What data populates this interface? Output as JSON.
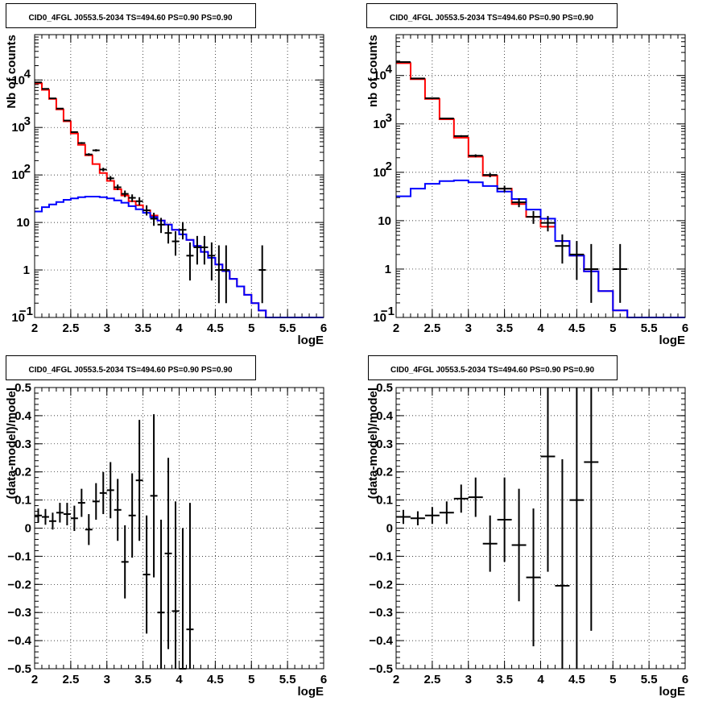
{
  "chart_data": [
    {
      "type": "line",
      "title": "CID0_4FGL J0553.5-2034 TS=494.60 PS=0.90 PS=0.90",
      "xlabel": "logE",
      "ylabel": "Nb of counts",
      "xlim": [
        2,
        6
      ],
      "ylim": [
        0.1,
        90000
      ],
      "yscale": "log",
      "grid": true,
      "x_ticks": [
        "2",
        "2.5",
        "3",
        "3.5",
        "4",
        "4.5",
        "5",
        "5.5",
        "6"
      ],
      "y_ticks": [
        {
          "value": 0.1,
          "label": "10",
          "sup": "−1"
        },
        {
          "value": 1,
          "label": "1",
          "sup": ""
        },
        {
          "value": 10,
          "label": "10",
          "sup": ""
        },
        {
          "value": 100,
          "label": "10",
          "sup": "2"
        },
        {
          "value": 1000,
          "label": "10",
          "sup": "3"
        },
        {
          "value": 10000,
          "label": "10",
          "sup": "4"
        }
      ],
      "bin_width": 0.1,
      "series": [
        {
          "color": "#ff0000",
          "style": "step",
          "x": [
            2.0,
            2.1,
            2.2,
            2.3,
            2.4,
            2.5,
            2.6,
            2.7,
            2.8,
            2.9,
            3.0,
            3.1,
            3.2,
            3.3,
            3.4,
            3.5,
            3.6,
            3.7,
            3.8,
            3.9,
            4.0,
            4.1,
            4.2,
            4.3,
            4.4,
            4.5,
            4.6,
            4.7,
            4.8,
            4.9,
            5.0,
            5.1,
            5.2,
            5.3,
            5.4,
            5.5,
            5.6,
            5.7,
            5.8,
            5.9
          ],
          "values": [
            8500,
            6200,
            4000,
            2400,
            1350,
            750,
            430,
            260,
            170,
            110,
            75,
            50,
            37,
            28,
            23,
            18,
            14,
            11,
            9,
            7,
            5.6,
            4.3,
            3.2,
            2.4,
            1.8,
            1.3,
            0.95,
            0.65,
            0.45,
            0.3,
            0.2,
            0.14,
            0.1,
            0.1,
            0.1,
            0.1,
            0.1,
            0.1,
            0.1,
            0.1
          ]
        },
        {
          "color": "#0000ff",
          "style": "step",
          "x": [
            2.0,
            2.1,
            2.2,
            2.3,
            2.4,
            2.5,
            2.6,
            2.7,
            2.8,
            2.9,
            3.0,
            3.1,
            3.2,
            3.3,
            3.4,
            3.5,
            3.6,
            3.7,
            3.8,
            3.9,
            4.0,
            4.1,
            4.2,
            4.3,
            4.4,
            4.5,
            4.6,
            4.7,
            4.8,
            4.9,
            5.0,
            5.1,
            5.2,
            5.3,
            5.4,
            5.5,
            5.6,
            5.7,
            5.8,
            5.9
          ],
          "values": [
            17,
            21,
            24,
            27,
            30,
            32,
            34,
            35,
            35,
            34,
            32,
            29,
            26,
            22,
            19,
            16,
            13,
            11,
            9,
            7,
            5.6,
            4.3,
            3.2,
            2.4,
            1.8,
            1.3,
            0.95,
            0.65,
            0.45,
            0.3,
            0.2,
            0.14,
            0.1,
            0.1,
            0.1,
            0.1,
            0.1,
            0.1,
            0.1,
            0.1
          ]
        },
        {
          "color": "#000000",
          "style": "errorbar",
          "x": [
            2.05,
            2.15,
            2.25,
            2.35,
            2.45,
            2.55,
            2.65,
            2.75,
            2.85,
            2.95,
            3.05,
            3.15,
            3.25,
            3.35,
            3.45,
            3.55,
            3.65,
            3.75,
            3.85,
            3.95,
            4.05,
            4.15,
            4.25,
            4.35,
            4.45,
            4.55,
            4.65,
            5.15
          ],
          "values": [
            8900,
            6500,
            4100,
            2500,
            1400,
            800,
            470,
            270,
            330,
            130,
            85,
            55,
            40,
            33,
            28,
            18,
            12,
            9,
            6,
            4,
            7,
            2,
            3,
            3,
            2,
            1,
            1,
            1
          ],
          "err_low": [
            90,
            80,
            60,
            50,
            37,
            28,
            21,
            16,
            18,
            11,
            9,
            7,
            6,
            6,
            5,
            4,
            3.5,
            3,
            2.4,
            2,
            2.6,
            1.4,
            1.7,
            1.7,
            1.4,
            0.8,
            0.8,
            0.8
          ],
          "err_high": [
            95,
            80,
            65,
            50,
            38,
            29,
            22,
            17,
            19,
            12,
            10,
            8,
            7,
            6,
            6,
            5,
            4,
            3.5,
            3,
            2.5,
            3.2,
            1.8,
            2.2,
            2.2,
            1.8,
            2.3,
            2.3,
            2.3
          ]
        }
      ]
    },
    {
      "type": "line",
      "title": "CID0_4FGL J0553.5-2034 TS=494.60 PS=0.90 PS=0.90",
      "xlabel": "logE",
      "ylabel": "nb of counts",
      "xlim": [
        2,
        6
      ],
      "ylim": [
        0.1,
        70000
      ],
      "yscale": "log",
      "grid": true,
      "x_ticks": [
        "2",
        "2.5",
        "3",
        "3.5",
        "4",
        "4.5",
        "5",
        "5.5",
        "6"
      ],
      "y_ticks": [
        {
          "value": 0.1,
          "label": "10",
          "sup": "−1"
        },
        {
          "value": 1,
          "label": "1",
          "sup": ""
        },
        {
          "value": 10,
          "label": "10",
          "sup": ""
        },
        {
          "value": 100,
          "label": "10",
          "sup": "2"
        },
        {
          "value": 1000,
          "label": "10",
          "sup": "3"
        },
        {
          "value": 10000,
          "label": "10",
          "sup": "4"
        }
      ],
      "bin_width": 0.2,
      "series": [
        {
          "color": "#ff0000",
          "style": "step",
          "x": [
            2.0,
            2.2,
            2.4,
            2.6,
            2.8,
            3.0,
            3.2,
            3.4,
            3.6,
            3.8,
            4.0,
            4.2,
            4.4,
            4.6,
            4.8,
            5.0,
            5.2,
            5.4,
            5.6,
            5.8
          ],
          "values": [
            18000,
            8400,
            3300,
            1250,
            520,
            210,
            85,
            46,
            22,
            12,
            7.5,
            3.8,
            1.9,
            0.9,
            0.35,
            0.14,
            0.1,
            0.1,
            0.1,
            0.1
          ]
        },
        {
          "color": "#0000ff",
          "style": "step",
          "x": [
            2.0,
            2.2,
            2.4,
            2.6,
            2.8,
            3.0,
            3.2,
            3.4,
            3.6,
            3.8,
            4.0,
            4.2,
            4.4,
            4.6,
            4.8,
            5.0,
            5.2,
            5.4,
            5.6,
            5.8
          ],
          "values": [
            32,
            46,
            58,
            66,
            68,
            62,
            52,
            40,
            28,
            17,
            11,
            3.8,
            1.9,
            0.9,
            0.35,
            0.14,
            0.1,
            0.1,
            0.1,
            0.1
          ]
        },
        {
          "color": "#000000",
          "style": "errorbar",
          "x": [
            2.1,
            2.3,
            2.5,
            2.7,
            2.9,
            3.1,
            3.3,
            3.5,
            3.7,
            3.9,
            4.1,
            4.3,
            4.5,
            4.7,
            5.1
          ],
          "values": [
            19000,
            8700,
            3400,
            1300,
            560,
            220,
            88,
            46,
            24,
            12,
            9,
            3,
            2,
            1,
            1
          ],
          "err_low": [
            140,
            95,
            60,
            36,
            24,
            15,
            9,
            7,
            5,
            3.4,
            3,
            1.7,
            1.4,
            0.8,
            0.8
          ],
          "err_high": [
            140,
            95,
            60,
            36,
            24,
            15,
            9,
            7,
            5,
            3.8,
            3.5,
            2.2,
            1.8,
            2.3,
            2.3
          ]
        }
      ]
    },
    {
      "type": "scatter",
      "title": "CID0_4FGL J0553.5-2034 TS=494.60 PS=0.90 PS=0.90",
      "xlabel": "logE",
      "ylabel": "(data-model)/model",
      "xlim": [
        2,
        6
      ],
      "ylim": [
        -0.5,
        0.5
      ],
      "grid": true,
      "x_ticks": [
        "2",
        "2.5",
        "3",
        "3.5",
        "4",
        "4.5",
        "5",
        "5.5",
        "6"
      ],
      "y_ticks": [
        "−0.5",
        "−0.4",
        "−0.3",
        "−0.2",
        "−0.1",
        "0",
        "0.1",
        "0.2",
        "0.3",
        "0.4",
        "0.5"
      ],
      "bin_width": 0.1,
      "series": [
        {
          "color": "#000000",
          "style": "errorbar",
          "x": [
            2.05,
            2.15,
            2.25,
            2.35,
            2.45,
            2.55,
            2.65,
            2.75,
            2.85,
            2.95,
            3.05,
            3.15,
            3.25,
            3.35,
            3.45,
            3.55,
            3.65,
            3.75,
            3.85,
            3.95,
            4.05,
            4.15
          ],
          "values": [
            0.045,
            0.04,
            0.025,
            0.055,
            0.05,
            0.035,
            0.09,
            -0.005,
            0.095,
            0.125,
            0.135,
            0.065,
            -0.12,
            0.045,
            0.17,
            -0.165,
            0.115,
            -0.3,
            -0.09,
            -0.295,
            -0.5,
            -0.36
          ],
          "err": [
            0.025,
            0.028,
            0.03,
            0.035,
            0.04,
            0.045,
            0.05,
            0.055,
            0.065,
            0.075,
            0.1,
            0.11,
            0.13,
            0.15,
            0.215,
            0.21,
            0.29,
            0.33,
            0.34,
            0.39,
            0.5,
            0.45
          ]
        }
      ]
    },
    {
      "type": "scatter",
      "title": "CID0_4FGL J0553.5-2034 TS=494.60 PS=0.90 PS=0.90",
      "xlabel": "logE",
      "ylabel": "(data-model)/model",
      "xlim": [
        2,
        6
      ],
      "ylim": [
        -0.5,
        0.5
      ],
      "grid": true,
      "x_ticks": [
        "2",
        "2.5",
        "3",
        "3.5",
        "4",
        "4.5",
        "5",
        "5.5",
        "6"
      ],
      "y_ticks": [
        "−0.5",
        "−0.4",
        "−0.3",
        "−0.2",
        "−0.1",
        "0",
        "0.1",
        "0.2",
        "0.3",
        "0.4",
        "0.5"
      ],
      "bin_width": 0.2,
      "series": [
        {
          "color": "#000000",
          "style": "errorbar",
          "x": [
            2.1,
            2.3,
            2.5,
            2.7,
            2.9,
            3.1,
            3.3,
            3.5,
            3.7,
            3.9,
            4.1,
            4.3,
            4.5,
            4.7
          ],
          "values": [
            0.04,
            0.035,
            0.045,
            0.055,
            0.105,
            0.11,
            -0.055,
            0.03,
            -0.06,
            -0.175,
            0.255,
            -0.205,
            0.1,
            0.235
          ],
          "err": [
            0.025,
            0.025,
            0.03,
            0.04,
            0.05,
            0.07,
            0.1,
            0.15,
            0.2,
            0.245,
            0.41,
            0.45,
            0.6,
            0.6
          ]
        }
      ]
    }
  ]
}
